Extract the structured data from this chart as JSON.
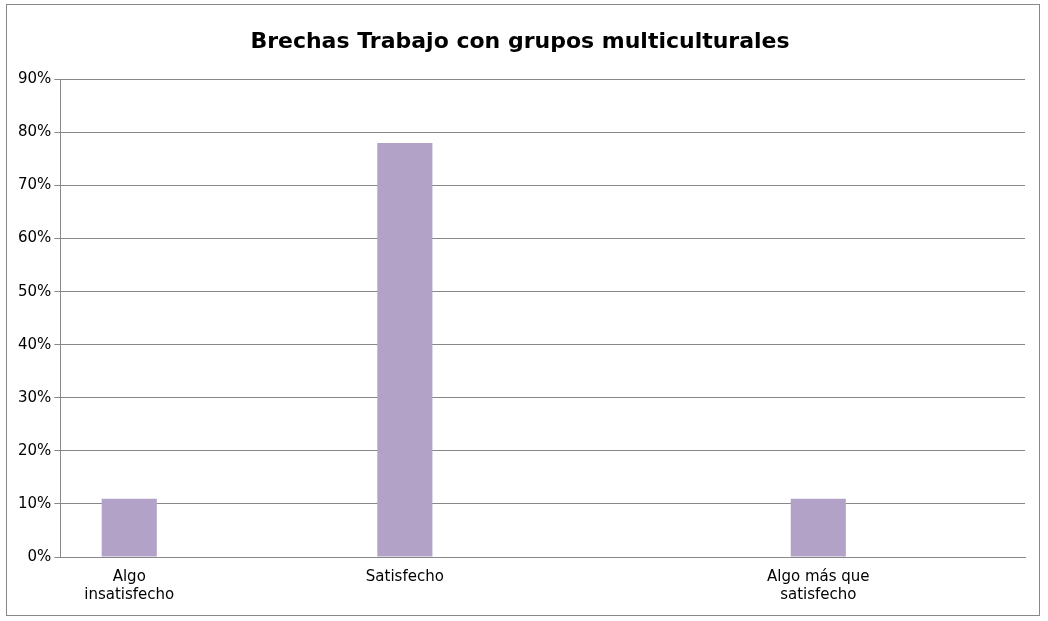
{
  "chart_data": {
    "type": "bar",
    "title": "Brechas Trabajo con grupos multiculturales",
    "categories": [
      "Algo insatisfecho",
      null,
      "Satisfecho",
      null,
      null,
      "Algo más que satisfecho",
      null
    ],
    "values": [
      11,
      0,
      78,
      0,
      0,
      11,
      0
    ],
    "color": "#b3a2c7",
    "ylim": [
      0,
      90
    ],
    "yticks": [
      {
        "value": 0,
        "label": "0%"
      },
      {
        "value": 10,
        "label": "10%"
      },
      {
        "value": 20,
        "label": "20%"
      },
      {
        "value": 30,
        "label": "30%"
      },
      {
        "value": 40,
        "label": "40%"
      },
      {
        "value": 50,
        "label": "50%"
      },
      {
        "value": 60,
        "label": "60%"
      },
      {
        "value": 70,
        "label": "70%"
      },
      {
        "value": 80,
        "label": "80%"
      },
      {
        "value": 90,
        "label": "90%"
      }
    ],
    "grid": "y",
    "legend": false
  }
}
